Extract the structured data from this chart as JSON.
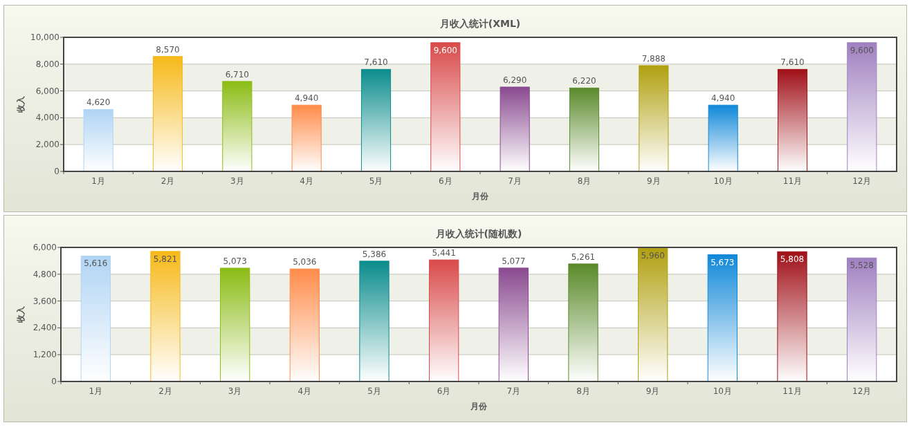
{
  "chart_data": [
    {
      "type": "bar",
      "title": "月收入统计(XML)",
      "xlabel": "月份",
      "ylabel": "收入",
      "categories": [
        "1月",
        "2月",
        "3月",
        "4月",
        "5月",
        "6月",
        "7月",
        "8月",
        "9月",
        "10月",
        "11月",
        "12月"
      ],
      "values": [
        4620,
        8570,
        6710,
        4940,
        7610,
        9600,
        6290,
        6220,
        7888,
        4940,
        7610,
        9600
      ],
      "value_labels": [
        "4,620",
        "8,570",
        "6,710",
        "4,940",
        "7,610",
        "9,600",
        "6,290",
        "6,220",
        "7,888",
        "4,940",
        "7,610",
        "9,600"
      ],
      "colors": [
        "#b0d4f4",
        "#f6b919",
        "#8bbc14",
        "#ff8c4a",
        "#0b8c8c",
        "#d94a4a",
        "#8a4a90",
        "#5a8a2a",
        "#b0a010",
        "#1088d8",
        "#a01018",
        "#a080c0"
      ],
      "ylim": [
        0,
        10000
      ],
      "yticks": [
        0,
        {
          "value": 2000,
          "label": "2,000"
        },
        {
          "value": 4000,
          "label": "4,000"
        },
        {
          "value": 6000,
          "label": "6,000"
        },
        {
          "value": 8000,
          "label": "8,000"
        },
        {
          "value": 10000,
          "label": "10,000"
        }
      ],
      "grid": "y"
    },
    {
      "type": "bar",
      "title": "月收入统计(随机数)",
      "xlabel": "月份",
      "ylabel": "收入",
      "categories": [
        "1月",
        "2月",
        "3月",
        "4月",
        "5月",
        "6月",
        "7月",
        "8月",
        "9月",
        "10月",
        "11月",
        "12月"
      ],
      "values": [
        5616,
        5821,
        5073,
        5036,
        5386,
        5441,
        5077,
        5261,
        5960,
        5673,
        5808,
        5528
      ],
      "value_labels": [
        "5,616",
        "5,821",
        "5,073",
        "5,036",
        "5,386",
        "5,441",
        "5,077",
        "5,261",
        "5,960",
        "5,673",
        "5,808",
        "5,528"
      ],
      "colors": [
        "#b0d4f4",
        "#f6b919",
        "#8bbc14",
        "#ff8c4a",
        "#0b8c8c",
        "#d94a4a",
        "#8a4a90",
        "#5a8a2a",
        "#b0a010",
        "#1088d8",
        "#a01018",
        "#a080c0"
      ],
      "ylim": [
        0,
        6000
      ],
      "yticks": [
        0,
        {
          "value": 1200,
          "label": "1,200"
        },
        {
          "value": 2400,
          "label": "2,400"
        },
        {
          "value": 3600,
          "label": "3,600"
        },
        {
          "value": 4800,
          "label": "4,800"
        },
        {
          "value": 6000,
          "label": "6,000"
        }
      ],
      "grid": "y"
    }
  ]
}
